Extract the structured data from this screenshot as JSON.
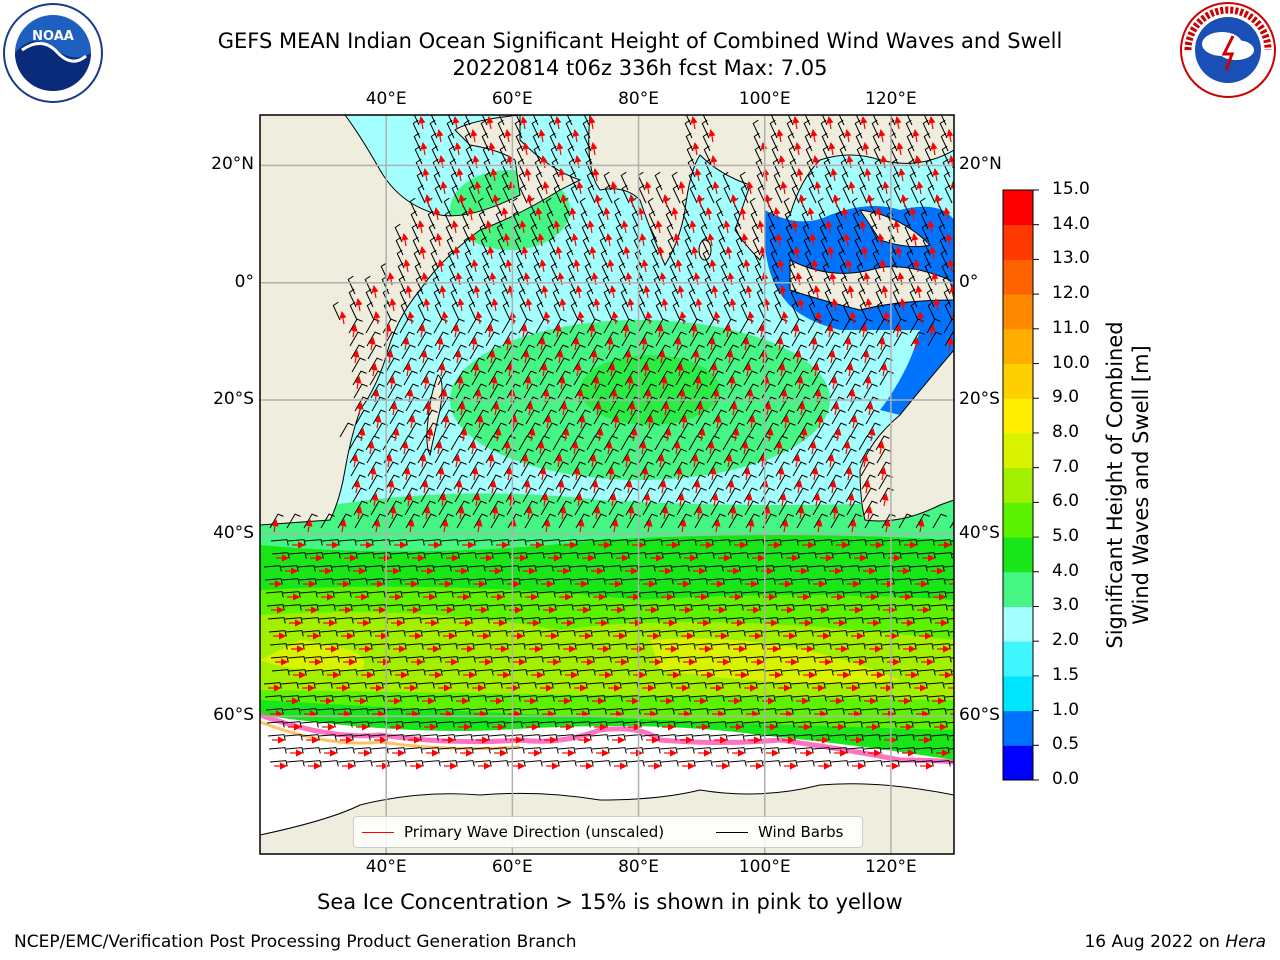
{
  "header": {
    "title_line1": "GEFS MEAN Indian Ocean Significant Height of Combined Wind Waves and Swell",
    "title_line2": "20220814 t06z 336h fcst   Max: 7.05"
  },
  "logos": {
    "left": {
      "name": "noaa-logo",
      "text": "NOAA"
    },
    "right": {
      "name": "nws-logo",
      "text": "NATIONAL WEATHER SERVICE"
    }
  },
  "map": {
    "extent": {
      "lon_min": 20,
      "lon_max": 130,
      "lat_min": -70,
      "lat_max": 28
    },
    "lon_ticks": [
      "40°E",
      "60°E",
      "80°E",
      "100°E",
      "120°E"
    ],
    "lat_ticks": [
      "20°N",
      "0°",
      "20°S",
      "40°S",
      "60°S"
    ],
    "colors": {
      "land": "#efeddd",
      "ocean_low": "#0000ff",
      "ice": "#ffffff",
      "grid": "#b0b0b0",
      "coast": "#000000"
    }
  },
  "legend": {
    "wave_label": "Primary Wave Direction (unscaled)",
    "wave_color": "#ff0000",
    "wind_label": "Wind Barbs",
    "wind_color": "#000000"
  },
  "colorbar": {
    "title_line1": "Significant Height of Combined",
    "title_line2": "Wind Waves and Swell [m]",
    "ticks": [
      "0.0",
      "0.5",
      "1.0",
      "1.5",
      "2.0",
      "3.0",
      "4.0",
      "5.0",
      "6.0",
      "7.0",
      "8.0",
      "9.0",
      "10.0",
      "11.0",
      "12.0",
      "13.0",
      "14.0",
      "15.0"
    ],
    "colors": [
      "#0000ff",
      "#0073ff",
      "#00e5ff",
      "#3ff6ff",
      "#a4ffff",
      "#46f684",
      "#19e619",
      "#5df200",
      "#a3ef00",
      "#d9f200",
      "#ffee00",
      "#ffd000",
      "#ffae00",
      "#ff8a00",
      "#ff6200",
      "#ff3a00",
      "#ff0000"
    ]
  },
  "caption": "Sea Ice Concentration > 15% is shown in pink to yellow",
  "footer": {
    "left": "NCEP/EMC/Verification Post Processing Product Generation Branch",
    "right_date": "16 Aug 2022 on ",
    "right_host": "Hera"
  }
}
